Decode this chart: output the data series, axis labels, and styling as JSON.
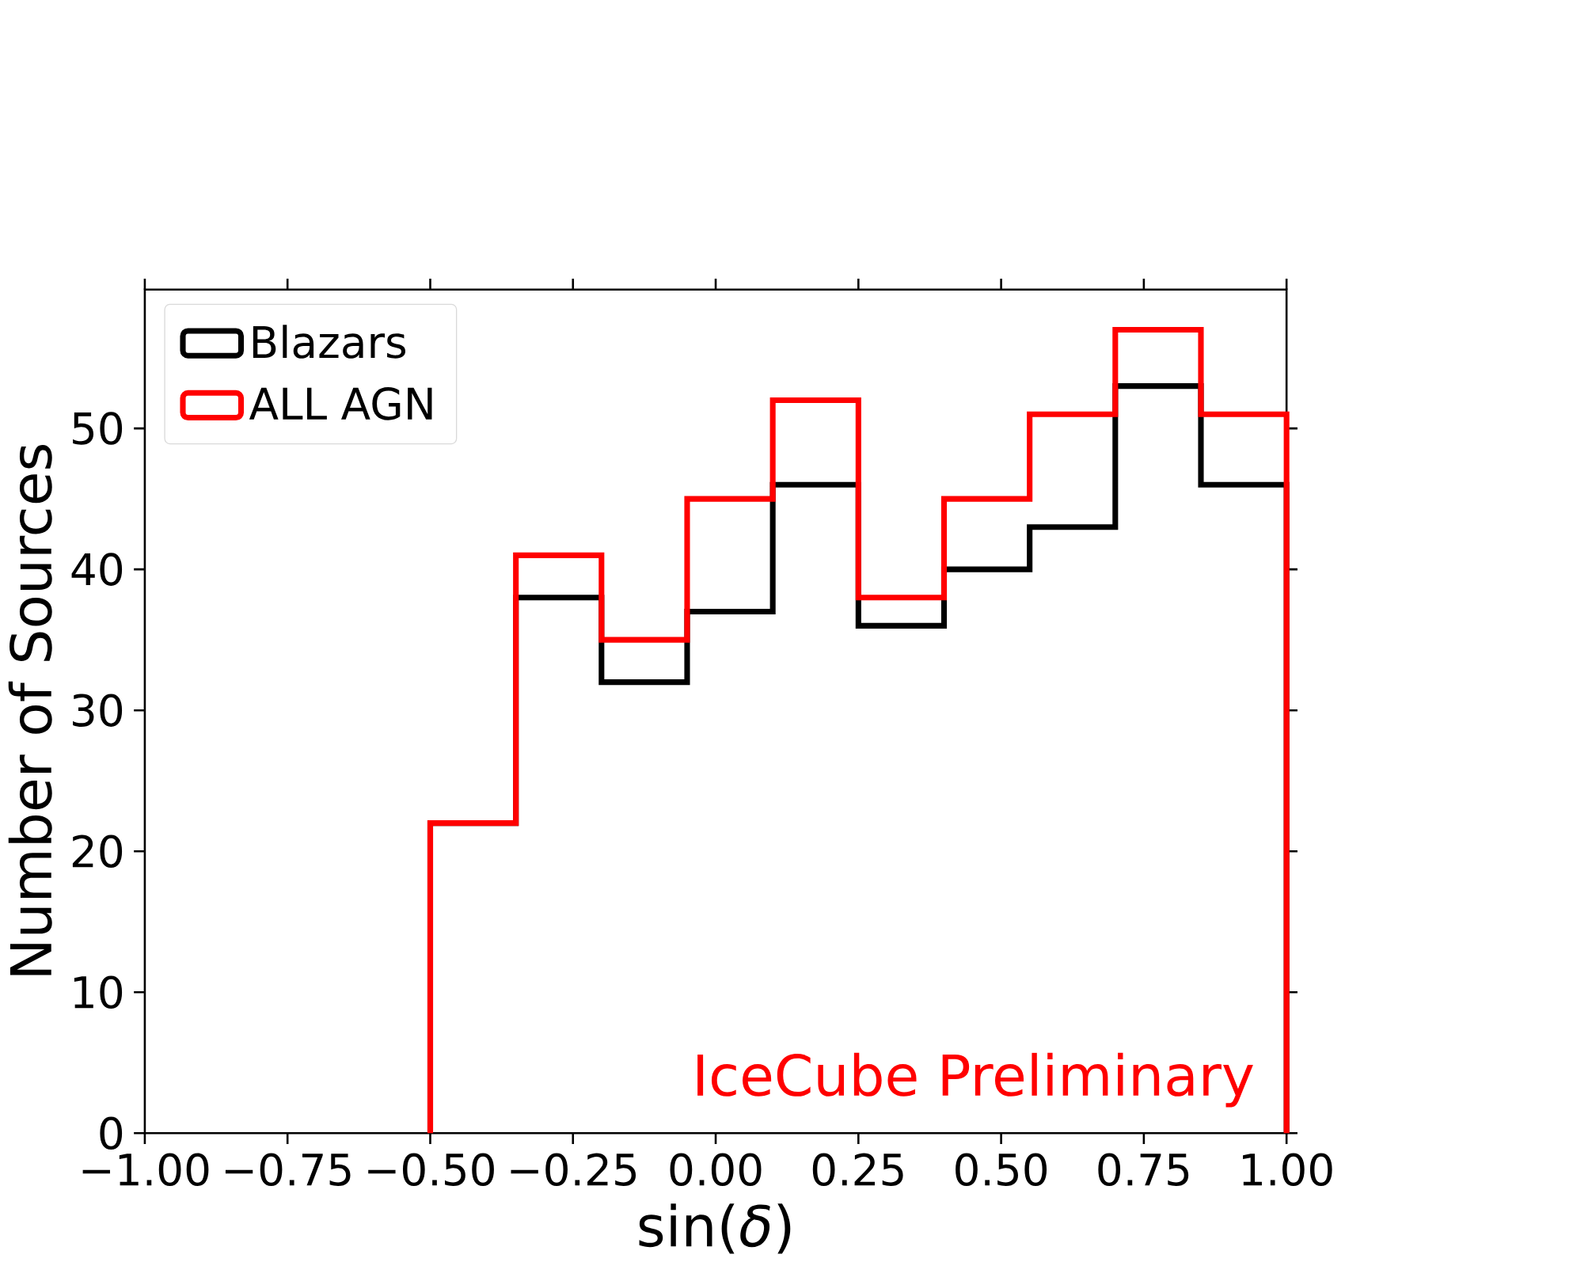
{
  "chart_data": {
    "type": "histogram",
    "xlabel": "sin(*δ*)",
    "ylabel": "Number of Sources",
    "bins": [
      -0.5,
      -0.35,
      -0.2,
      -0.05,
      0.1,
      0.25,
      0.4,
      0.55,
      0.7,
      0.85,
      1.0
    ],
    "series": [
      {
        "name": "Blazars",
        "color": "#000000",
        "values": [
          22,
          38,
          32,
          37,
          46,
          36,
          40,
          43,
          53,
          46
        ]
      },
      {
        "name": "ALL AGN",
        "color": "#ff0000",
        "values": [
          22,
          41,
          35,
          45,
          52,
          38,
          45,
          51,
          57,
          51
        ]
      }
    ],
    "xlim": [
      -1.0,
      1.0
    ],
    "xticks": [
      {
        "value": -1.0,
        "label": "−1.00"
      },
      {
        "value": -0.75,
        "label": "−0.75"
      },
      {
        "value": -0.5,
        "label": "−0.50"
      },
      {
        "value": -0.25,
        "label": "−0.25"
      },
      {
        "value": 0.0,
        "label": "0.00"
      },
      {
        "value": 0.25,
        "label": "0.25"
      },
      {
        "value": 0.5,
        "label": "0.50"
      },
      {
        "value": 0.75,
        "label": "0.75"
      },
      {
        "value": 1.0,
        "label": "1.00"
      }
    ],
    "ylim": [
      0,
      59.85
    ],
    "yticks": [
      0,
      10,
      20,
      30,
      40,
      50
    ],
    "legend": "top left",
    "grid": false,
    "annotations": [
      "IceCube Preliminary"
    ]
  }
}
